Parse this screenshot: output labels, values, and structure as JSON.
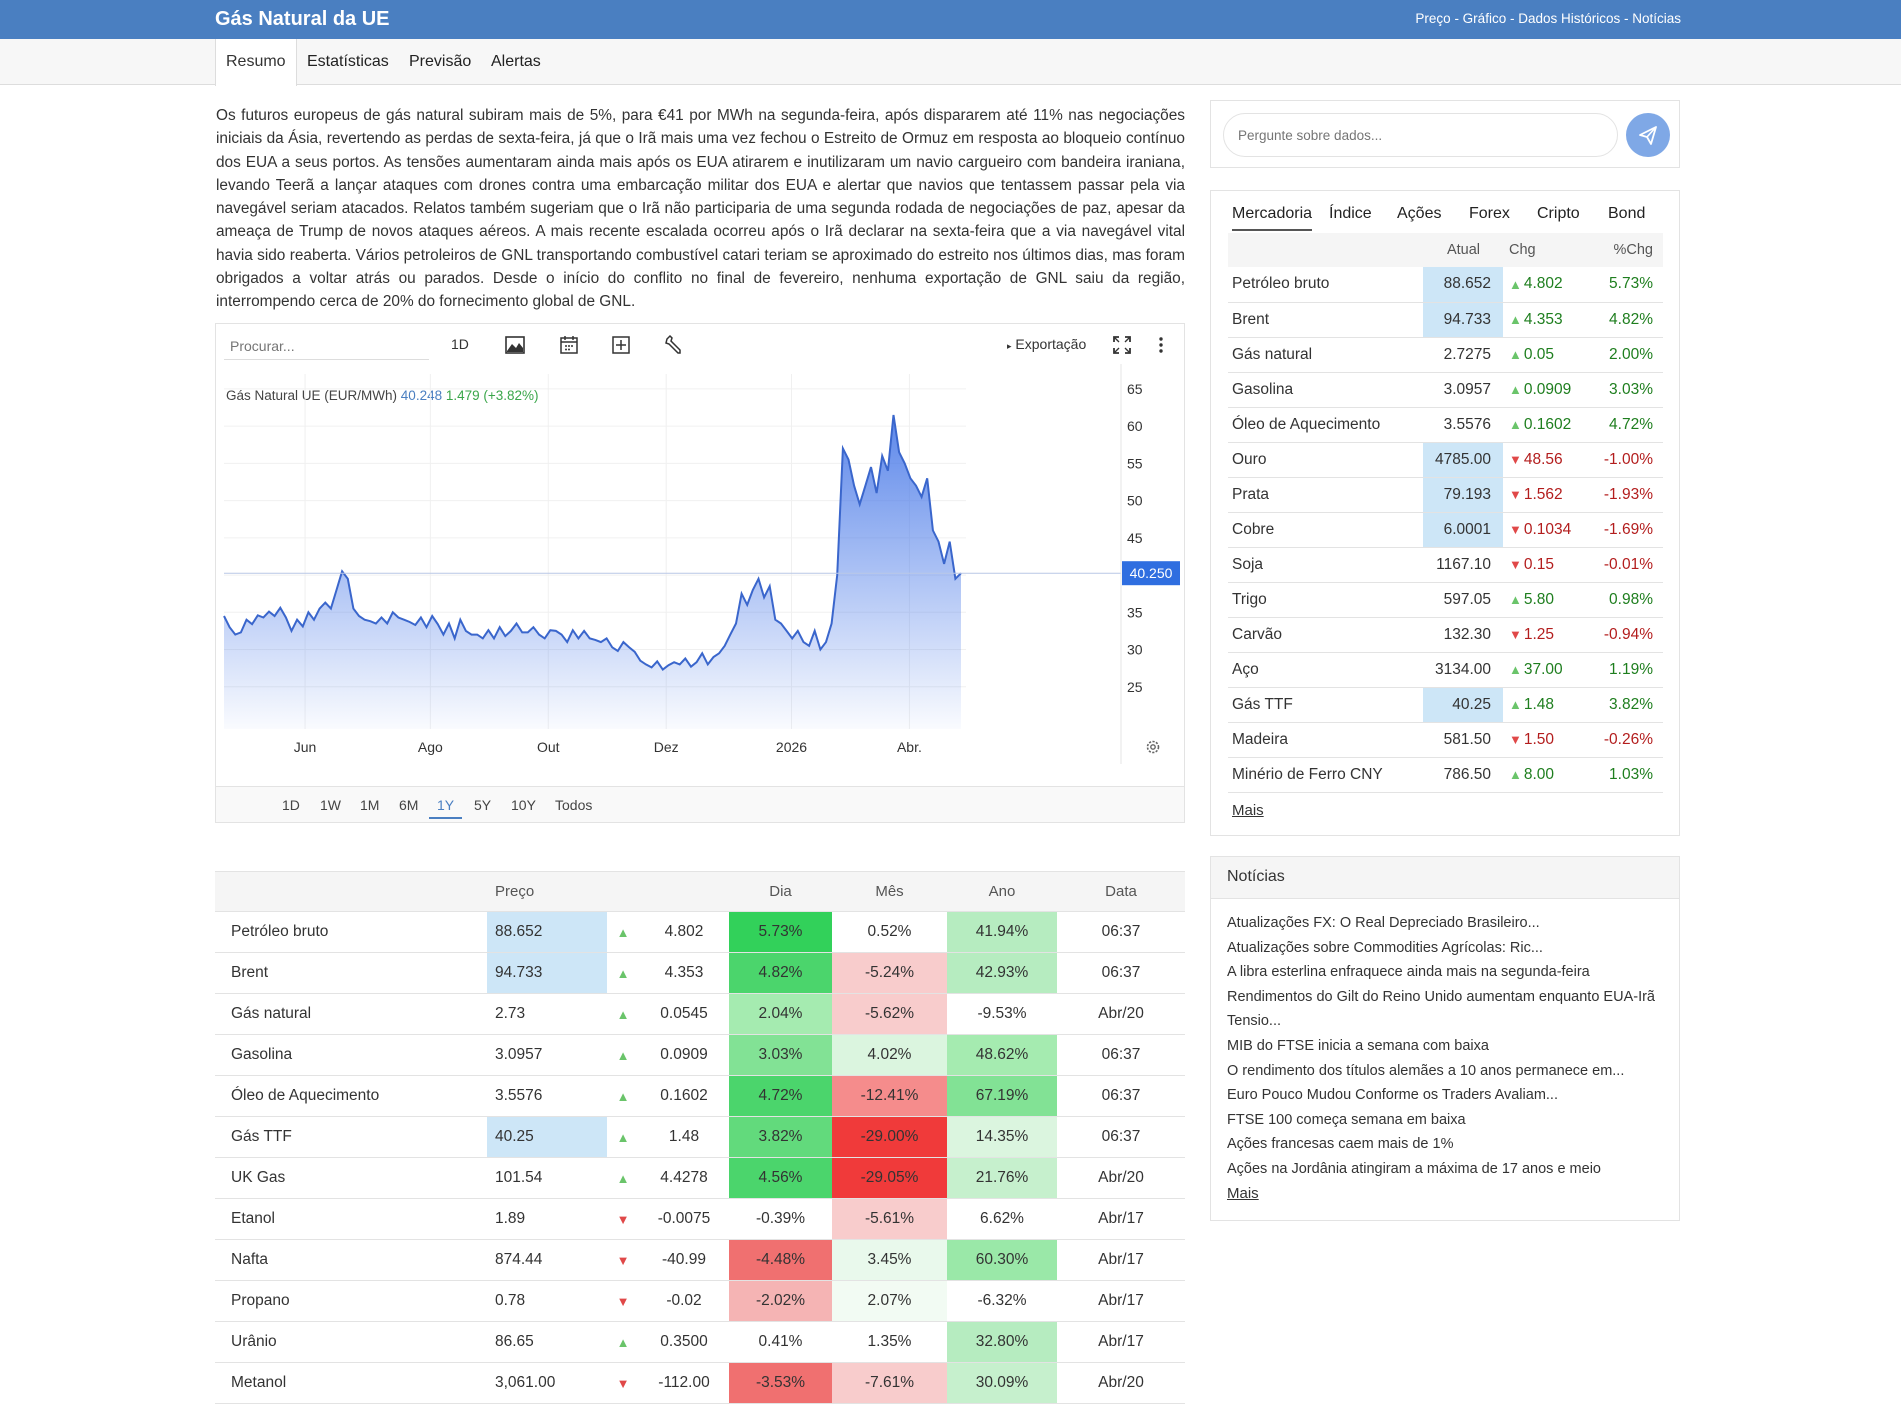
{
  "header": {
    "title": "Gás Natural da UE",
    "links": "Preço - Gráfico - Dados Históricos - Notícias"
  },
  "tabs": [
    "Resumo",
    "Estatísticas",
    "Previsão",
    "Alertas"
  ],
  "summary": "Os futuros europeus de gás natural subiram mais de 5%, para €41 por MWh na segunda-feira, após dispararem até 11% nas negociações iniciais da Ásia, revertendo as perdas de sexta-feira, já que o Irã mais uma vez fechou o Estreito de Ormuz em resposta ao bloqueio contínuo dos EUA a seus portos. As tensões aumentaram ainda mais após os EUA atirarem e inutilizaram um navio cargueiro com bandeira iraniana, levando Teerã a lançar ataques com drones contra uma embarcação militar dos EUA e alertar que navios que tentassem passar pela via navegável seriam atacados. Relatos também sugeriam que o Irã não participaria de uma segunda rodada de negociações de paz, apesar da ameaça de Trump de novos ataques aéreos. A mais recente escalada ocorreu após o Irã declarar na sexta-feira que a via navegável vital havia sido reaberta. Vários petroleiros de GNL transportando combustível catari teriam se aproximado do estreito nos últimos dias, mas foram obrigados a voltar atrás ou parados. Desde o início do conflito no final de fevereiro, nenhuma exportação de GNL saiu da região, interrompendo cerca de 20% do fornecimento global de GNL.",
  "chart_toolbar": {
    "search_placeholder": "Procurar...",
    "interval": "1D",
    "export_label": "Exportação"
  },
  "chart_legend": {
    "name": "Gás Natural UE (EUR/MWh)",
    "last": "40.248",
    "change": "1.479 (+3.82%)"
  },
  "range_buttons": [
    "1D",
    "1W",
    "1M",
    "6M",
    "1Y",
    "5Y",
    "10Y",
    "Todos"
  ],
  "range_active": "1Y",
  "chart_data": {
    "type": "area",
    "title": "",
    "x_tick_labels": [
      "Jun",
      "Ago",
      "Out",
      "Dez",
      "2026",
      "Abr."
    ],
    "y_ticks": [
      25,
      30,
      35,
      40,
      45,
      50,
      55,
      60,
      65
    ],
    "ylim": [
      20,
      67
    ],
    "last_value_label": "40.250",
    "last_value": 40.25,
    "series": [
      {
        "values": [
          34.5,
          33.0,
          32.0,
          32.3,
          34.0,
          33.4,
          34.6,
          34.3,
          35.1,
          34.5,
          35.6,
          34.3,
          32.5,
          34.0,
          33.1,
          35.0,
          34.0,
          35.5,
          36.3,
          35.5,
          38.0,
          40.5,
          39.5,
          35.5,
          34.5,
          34.0,
          33.8,
          33.5,
          34.3,
          33.5,
          35.0,
          34.3,
          34.0,
          33.7,
          33.3,
          34.3,
          33.0,
          34.5,
          33.4,
          32.0,
          33.5,
          31.5,
          34.0,
          32.5,
          32.0,
          32.0,
          31.5,
          32.6,
          31.5,
          33.0,
          31.8,
          32.5,
          33.5,
          32.3,
          32.3,
          33.0,
          32.0,
          31.5,
          32.6,
          32.5,
          32.0,
          31.0,
          32.6,
          31.5,
          32.5,
          31.5,
          31.3,
          31.0,
          31.5,
          30.3,
          29.8,
          31.0,
          30.3,
          29.7,
          28.5,
          28.0,
          27.6,
          28.4,
          27.3,
          27.9,
          28.3,
          28.0,
          28.8,
          27.7,
          28.3,
          29.5,
          28.0,
          29.0,
          29.5,
          30.5,
          32.0,
          33.5,
          37.5,
          36.0,
          38.0,
          39.5,
          37.0,
          38.5,
          34.0,
          33.5,
          32.5,
          31.5,
          32.5,
          31.0,
          30.5,
          32.5,
          30.0,
          31.0,
          33.5,
          40.0,
          57.0,
          55.5,
          52.0,
          49.5,
          52.0,
          54.5,
          51.0,
          56.0,
          54.0,
          61.5,
          56.5,
          55.0,
          53.0,
          52.0,
          50.5,
          53.0,
          46.0,
          44.5,
          41.5,
          44.5,
          39.5,
          40.25
        ]
      }
    ]
  },
  "prices_table": {
    "headers": [
      "",
      "Preço",
      "",
      "",
      "Dia",
      "Mês",
      "Ano",
      "Data"
    ],
    "rows": [
      {
        "name": "Petróleo bruto",
        "price": "88.652",
        "highlight": true,
        "dir": "up",
        "chg": "4.802",
        "day": "5.73%",
        "month": "0.52%",
        "year": "41.94%",
        "date": "06:37",
        "day_color": "#32d15a",
        "month_color": "#ffffff",
        "year_color": "#b6ecc0"
      },
      {
        "name": "Brent",
        "price": "94.733",
        "highlight": true,
        "dir": "up",
        "chg": "4.353",
        "day": "4.82%",
        "month": "-5.24%",
        "year": "42.93%",
        "date": "06:37",
        "day_color": "#4bd56c",
        "month_color": "#f8cccc",
        "year_color": "#b6ecc0"
      },
      {
        "name": "Gás natural",
        "price": "2.73",
        "highlight": false,
        "dir": "up",
        "chg": "0.0545",
        "day": "2.04%",
        "month": "-5.62%",
        "year": "-9.53%",
        "date": "Abr/20",
        "day_color": "#a5ebb0",
        "month_color": "#f8cccc",
        "year_color": "#ffffff"
      },
      {
        "name": "Gasolina",
        "price": "3.0957",
        "highlight": false,
        "dir": "up",
        "chg": "0.0909",
        "day": "3.03%",
        "month": "4.02%",
        "year": "48.62%",
        "date": "06:37",
        "day_color": "#82e295",
        "month_color": "#dbf5df",
        "year_color": "#a5ebb0"
      },
      {
        "name": "Óleo de Aquecimento",
        "price": "3.5576",
        "highlight": false,
        "dir": "up",
        "chg": "0.1602",
        "day": "4.72%",
        "month": "-12.41%",
        "year": "67.19%",
        "date": "06:37",
        "day_color": "#4bd56c",
        "month_color": "#f58c8c",
        "year_color": "#82e295"
      },
      {
        "name": "Gás TTF",
        "price": "40.25",
        "highlight": true,
        "dir": "up",
        "chg": "1.48",
        "day": "3.82%",
        "month": "-29.00%",
        "year": "14.35%",
        "date": "06:37",
        "day_color": "#62da7c",
        "month_color": "#f03a3a",
        "year_color": "#dbf5df"
      },
      {
        "name": "UK Gas",
        "price": "101.54",
        "highlight": false,
        "dir": "up",
        "chg": "4.4278",
        "day": "4.56%",
        "month": "-29.05%",
        "year": "21.76%",
        "date": "Abr/20",
        "day_color": "#4bd56c",
        "month_color": "#f03a3a",
        "year_color": "#c6f0cd"
      },
      {
        "name": "Etanol",
        "price": "1.89",
        "highlight": false,
        "dir": "down",
        "chg": "-0.0075",
        "day": "-0.39%",
        "month": "-5.61%",
        "year": "6.62%",
        "date": "Abr/17",
        "day_color": "#ffffff",
        "month_color": "#f8cccc",
        "year_color": "#ffffff"
      },
      {
        "name": "Nafta",
        "price": "874.44",
        "highlight": false,
        "dir": "down",
        "chg": "-40.99",
        "day": "-4.48%",
        "month": "3.45%",
        "year": "60.30%",
        "date": "Abr/17",
        "day_color": "#f07070",
        "month_color": "#e9f9ec",
        "year_color": "#9ae8a8"
      },
      {
        "name": "Propano",
        "price": "0.78",
        "highlight": false,
        "dir": "down",
        "chg": "-0.02",
        "day": "-2.02%",
        "month": "2.07%",
        "year": "-6.32%",
        "date": "Abr/17",
        "day_color": "#f5b4b4",
        "month_color": "#f2fbf3",
        "year_color": "#ffffff"
      },
      {
        "name": "Urânio",
        "price": "86.65",
        "highlight": false,
        "dir": "up",
        "chg": "0.3500",
        "day": "0.41%",
        "month": "1.35%",
        "year": "32.80%",
        "date": "Abr/17",
        "day_color": "#ffffff",
        "month_color": "#ffffff",
        "year_color": "#b6ecc0"
      },
      {
        "name": "Metanol",
        "price": "3,061.00",
        "highlight": false,
        "dir": "down",
        "chg": "-112.00",
        "day": "-3.53%",
        "month": "-7.61%",
        "year": "30.09%",
        "date": "Abr/20",
        "day_color": "#f07070",
        "month_color": "#f8cccc",
        "year_color": "#c6f0cd"
      }
    ]
  },
  "ask": {
    "placeholder": "Pergunte sobre dados..."
  },
  "market": {
    "tabs": [
      "Mercadoria",
      "Índice",
      "Ações",
      "Forex",
      "Cripto",
      "Bond"
    ],
    "headers": [
      "",
      "Atual",
      "Chg",
      "%Chg"
    ],
    "rows": [
      {
        "name": "Petróleo bruto",
        "price": "88.652",
        "hl": true,
        "dir": "up",
        "chg": "4.802",
        "pct": "5.73%"
      },
      {
        "name": "Brent",
        "price": "94.733",
        "hl": true,
        "dir": "up",
        "chg": "4.353",
        "pct": "4.82%"
      },
      {
        "name": "Gás natural",
        "price": "2.7275",
        "hl": false,
        "dir": "up",
        "chg": "0.05",
        "pct": "2.00%"
      },
      {
        "name": "Gasolina",
        "price": "3.0957",
        "hl": false,
        "dir": "up",
        "chg": "0.0909",
        "pct": "3.03%"
      },
      {
        "name": "Óleo de Aquecimento",
        "price": "3.5576",
        "hl": false,
        "dir": "up",
        "chg": "0.1602",
        "pct": "4.72%"
      },
      {
        "name": "Ouro",
        "price": "4785.00",
        "hl": true,
        "dir": "down",
        "chg": "48.56",
        "pct": "-1.00%"
      },
      {
        "name": "Prata",
        "price": "79.193",
        "hl": true,
        "dir": "down",
        "chg": "1.562",
        "pct": "-1.93%"
      },
      {
        "name": "Cobre",
        "price": "6.0001",
        "hl": true,
        "dir": "down",
        "chg": "0.1034",
        "pct": "-1.69%"
      },
      {
        "name": "Soja",
        "price": "1167.10",
        "hl": false,
        "dir": "down",
        "chg": "0.15",
        "pct": "-0.01%"
      },
      {
        "name": "Trigo",
        "price": "597.05",
        "hl": false,
        "dir": "up",
        "chg": "5.80",
        "pct": "0.98%"
      },
      {
        "name": "Carvão",
        "price": "132.30",
        "hl": false,
        "dir": "down",
        "chg": "1.25",
        "pct": "-0.94%"
      },
      {
        "name": "Aço",
        "price": "3134.00",
        "hl": false,
        "dir": "up",
        "chg": "37.00",
        "pct": "1.19%"
      },
      {
        "name": "Gás TTF",
        "price": "40.25",
        "hl": true,
        "dir": "up",
        "chg": "1.48",
        "pct": "3.82%"
      },
      {
        "name": "Madeira",
        "price": "581.50",
        "hl": false,
        "dir": "down",
        "chg": "1.50",
        "pct": "-0.26%"
      },
      {
        "name": "Minério de Ferro CNY",
        "price": "786.50",
        "hl": false,
        "dir": "up",
        "chg": "8.00",
        "pct": "1.03%"
      }
    ],
    "more": "Mais"
  },
  "news": {
    "title": "Notícias",
    "items": [
      "Atualizações FX: O Real Depreciado Brasileiro...",
      "Atualizações sobre Commodities Agrícolas: Ric...",
      "A libra esterlina enfraquece ainda mais na segunda-feira",
      "Rendimentos do Gilt do Reino Unido aumentam enquanto EUA-Irã Tensio...",
      "MIB do FTSE inicia a semana com baixa",
      "O rendimento dos títulos alemães a 10 anos permanece em...",
      "Euro Pouco Mudou Conforme os Traders Avaliam...",
      "FTSE 100 começa semana em baixa",
      "Ações francesas caem mais de 1%",
      "Ações na Jordânia atingiram a máxima de 17 anos e meio"
    ],
    "more": "Mais"
  }
}
